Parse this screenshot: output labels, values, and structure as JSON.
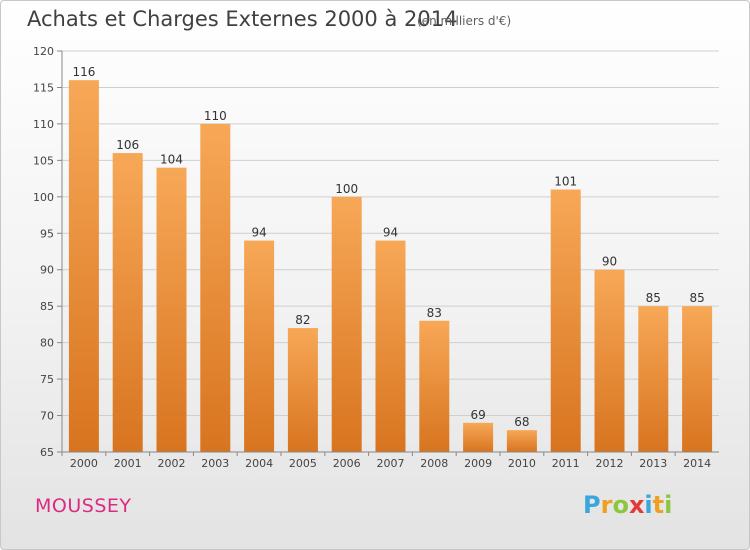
{
  "header": {
    "title": "Achats et Charges Externes 2000 à 2014",
    "subtitle": "(en milliers d'€)"
  },
  "footer": {
    "commune": "MOUSSEY",
    "logo_text": "Proxiti"
  },
  "colors": {
    "bar_top": "#f7a857",
    "bar_bottom": "#d8741f",
    "grid": "#cfcfcf",
    "commune": "#dc2a82"
  },
  "chart_data": {
    "type": "bar",
    "title": "Achats et Charges Externes 2000 à 2014",
    "subtitle": "(en milliers d'€)",
    "xlabel": "",
    "ylabel": "",
    "categories": [
      "2000",
      "2001",
      "2002",
      "2003",
      "2004",
      "2005",
      "2006",
      "2007",
      "2008",
      "2009",
      "2010",
      "2011",
      "2012",
      "2013",
      "2014"
    ],
    "values": [
      116,
      106,
      104,
      110,
      94,
      82,
      100,
      94,
      83,
      69,
      68,
      101,
      90,
      85,
      85
    ],
    "ylim": [
      65,
      120
    ],
    "yticks": [
      65,
      70,
      75,
      80,
      85,
      90,
      95,
      100,
      105,
      110,
      115,
      120
    ],
    "grid": true,
    "legend": "none"
  }
}
